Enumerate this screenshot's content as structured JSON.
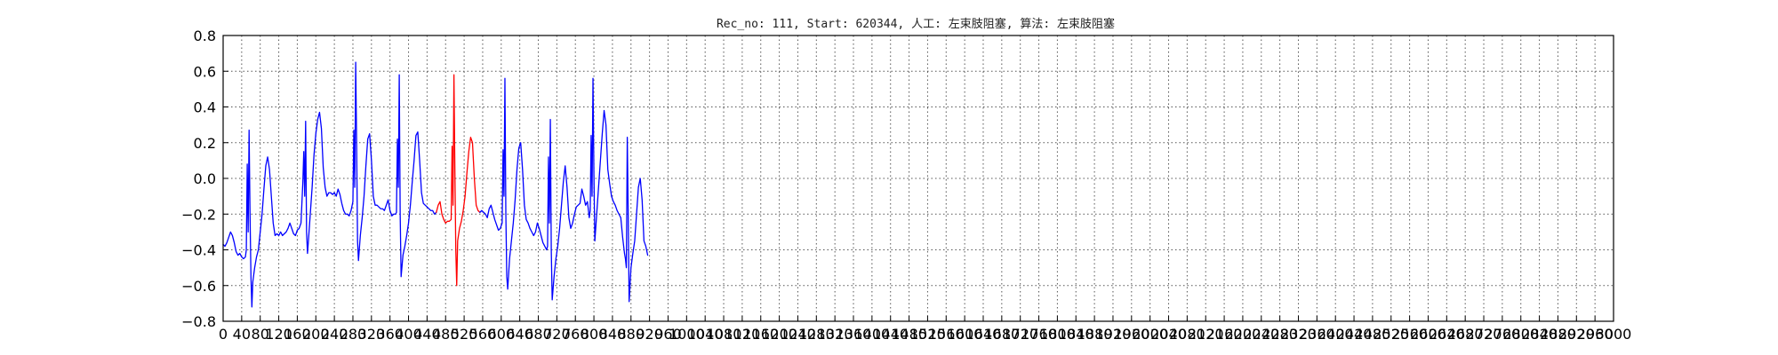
{
  "chart_data": {
    "type": "line",
    "title": "Rec_no: 111, Start: 620344, 人工: 左束肢阻塞, 算法: 左束肢阻塞",
    "xlabel": "",
    "ylabel": "",
    "xlim": [
      0,
      3000
    ],
    "ylim": [
      -0.8,
      0.8
    ],
    "grid": true,
    "y_ticks": [
      "0.8",
      "0.6",
      "0.4",
      "0.2",
      "0.0",
      "−0.2",
      "−0.4",
      "−0.6",
      "−0.8"
    ],
    "y_tick_values": [
      0.8,
      0.6,
      0.4,
      0.2,
      0.0,
      -0.2,
      -0.4,
      -0.6,
      -0.8
    ],
    "x_tick_values": [
      0,
      40,
      80,
      120,
      160,
      200,
      240,
      280,
      320,
      360,
      400,
      440,
      480,
      520,
      560,
      600,
      640,
      680,
      720,
      760,
      800,
      840,
      880,
      920,
      960,
      1000,
      1040,
      1080,
      1120,
      1160,
      1200,
      1240,
      1280,
      1320,
      1360,
      1400,
      1440,
      1480,
      1520,
      1560,
      1600,
      1640,
      1680,
      1720,
      1760,
      1800,
      1840,
      1880,
      1920,
      1960,
      2000,
      2040,
      2080,
      2120,
      2160,
      2200,
      2240,
      2280,
      2320,
      2360,
      2400,
      2440,
      2480,
      2520,
      2560,
      2600,
      2640,
      2680,
      2720,
      2760,
      2800,
      2840,
      2880,
      2920,
      2960,
      3000
    ],
    "x_tick_labels": [
      "0",
      "40",
      "80",
      "120",
      "160",
      "200",
      "240",
      "280",
      "320",
      "360",
      "400",
      "440",
      "480",
      "520",
      "560",
      "600",
      "640",
      "680",
      "720",
      "760",
      "800",
      "840",
      "880",
      "920",
      "960",
      "1000",
      "1040",
      "1080",
      "1120",
      "1160",
      "1200",
      "1240",
      "1280",
      "1320",
      "1360",
      "1400",
      "1440",
      "1480",
      "1520",
      "1560",
      "1600",
      "1640",
      "1680",
      "1720",
      "1760",
      "1800",
      "1840",
      "1880",
      "1920",
      "1960",
      "2000",
      "2040",
      "2080",
      "2120",
      "2160",
      "2200",
      "2240",
      "2280",
      "2320",
      "2360",
      "2400",
      "2440",
      "2480",
      "2520",
      "2560",
      "2600",
      "2640",
      "2680",
      "2720",
      "2760",
      "2800",
      "2840",
      "2880",
      "2920",
      "2960",
      "3000"
    ],
    "x_tick_font_size": 16,
    "colors": {
      "series": "#0000ff",
      "highlight": "#ff0000",
      "frame": "#000000",
      "grid": "#555555"
    },
    "series": [
      {
        "color": "#0000ff",
        "points": [
          [
            0,
            -0.37
          ],
          [
            4,
            -0.38
          ],
          [
            8,
            -0.36
          ],
          [
            12,
            -0.33
          ],
          [
            16,
            -0.3
          ],
          [
            20,
            -0.32
          ],
          [
            24,
            -0.36
          ],
          [
            28,
            -0.41
          ],
          [
            32,
            -0.43
          ],
          [
            36,
            -0.42
          ],
          [
            40,
            -0.44
          ],
          [
            44,
            -0.45
          ],
          [
            48,
            -0.44
          ],
          [
            50,
            -0.4
          ],
          [
            52,
            0.08
          ],
          [
            54,
            -0.3
          ],
          [
            56,
            0.27
          ],
          [
            58,
            -0.2
          ],
          [
            60,
            -0.55
          ],
          [
            62,
            -0.72
          ],
          [
            64,
            -0.58
          ],
          [
            68,
            -0.5
          ],
          [
            72,
            -0.44
          ],
          [
            76,
            -0.4
          ],
          [
            80,
            -0.3
          ],
          [
            84,
            -0.2
          ],
          [
            88,
            -0.06
          ],
          [
            92,
            0.07
          ],
          [
            96,
            0.12
          ],
          [
            100,
            0.05
          ],
          [
            104,
            -0.1
          ],
          [
            108,
            -0.25
          ],
          [
            112,
            -0.32
          ],
          [
            116,
            -0.31
          ],
          [
            120,
            -0.32
          ],
          [
            124,
            -0.3
          ],
          [
            128,
            -0.32
          ],
          [
            132,
            -0.31
          ],
          [
            136,
            -0.3
          ],
          [
            140,
            -0.28
          ],
          [
            144,
            -0.25
          ],
          [
            148,
            -0.28
          ],
          [
            152,
            -0.31
          ],
          [
            156,
            -0.32
          ],
          [
            160,
            -0.29
          ],
          [
            164,
            -0.28
          ],
          [
            168,
            -0.25
          ],
          [
            172,
            -0.02
          ],
          [
            174,
            0.15
          ],
          [
            176,
            -0.1
          ],
          [
            178,
            0.32
          ],
          [
            180,
            -0.3
          ],
          [
            182,
            -0.42
          ],
          [
            184,
            -0.35
          ],
          [
            188,
            -0.2
          ],
          [
            192,
            -0.05
          ],
          [
            196,
            0.13
          ],
          [
            200,
            0.25
          ],
          [
            204,
            0.33
          ],
          [
            208,
            0.37
          ],
          [
            212,
            0.28
          ],
          [
            216,
            0.06
          ],
          [
            220,
            -0.05
          ],
          [
            224,
            -0.1
          ],
          [
            228,
            -0.08
          ],
          [
            232,
            -0.08
          ],
          [
            236,
            -0.09
          ],
          [
            240,
            -0.08
          ],
          [
            244,
            -0.1
          ],
          [
            248,
            -0.06
          ],
          [
            252,
            -0.09
          ],
          [
            256,
            -0.14
          ],
          [
            260,
            -0.18
          ],
          [
            264,
            -0.2
          ],
          [
            268,
            -0.2
          ],
          [
            272,
            -0.21
          ],
          [
            276,
            -0.18
          ],
          [
            280,
            -0.13
          ],
          [
            282,
            0.27
          ],
          [
            284,
            -0.05
          ],
          [
            286,
            0.65
          ],
          [
            288,
            0.2
          ],
          [
            290,
            -0.35
          ],
          [
            292,
            -0.46
          ],
          [
            296,
            -0.32
          ],
          [
            300,
            -0.22
          ],
          [
            304,
            -0.1
          ],
          [
            308,
            0.07
          ],
          [
            312,
            0.22
          ],
          [
            316,
            0.25
          ],
          [
            320,
            0.1
          ],
          [
            324,
            -0.1
          ],
          [
            328,
            -0.15
          ],
          [
            332,
            -0.15
          ],
          [
            336,
            -0.16
          ],
          [
            340,
            -0.17
          ],
          [
            344,
            -0.17
          ],
          [
            348,
            -0.18
          ],
          [
            352,
            -0.15
          ],
          [
            356,
            -0.12
          ],
          [
            360,
            -0.18
          ],
          [
            364,
            -0.21
          ],
          [
            368,
            -0.2
          ],
          [
            372,
            -0.2
          ],
          [
            374,
            -0.19
          ],
          [
            376,
            0.22
          ],
          [
            378,
            -0.05
          ],
          [
            380,
            0.58
          ],
          [
            382,
            -0.2
          ],
          [
            384,
            -0.55
          ],
          [
            388,
            -0.43
          ],
          [
            392,
            -0.38
          ],
          [
            396,
            -0.32
          ],
          [
            400,
            -0.25
          ],
          [
            404,
            -0.15
          ],
          [
            408,
            -0.02
          ],
          [
            412,
            0.1
          ],
          [
            416,
            0.24
          ],
          [
            420,
            0.26
          ],
          [
            424,
            0.1
          ],
          [
            428,
            -0.08
          ],
          [
            432,
            -0.14
          ],
          [
            436,
            -0.15
          ],
          [
            440,
            -0.16
          ],
          [
            444,
            -0.17
          ],
          [
            448,
            -0.18
          ],
          [
            452,
            -0.18
          ],
          [
            456,
            -0.2
          ],
          [
            460,
            -0.19
          ]
        ]
      },
      {
        "color": "#ff0000",
        "points": [
          [
            460,
            -0.19
          ],
          [
            464,
            -0.15
          ],
          [
            468,
            -0.13
          ],
          [
            472,
            -0.2
          ],
          [
            476,
            -0.23
          ],
          [
            480,
            -0.25
          ],
          [
            484,
            -0.24
          ],
          [
            488,
            -0.24
          ],
          [
            492,
            -0.23
          ],
          [
            494,
            0.18
          ],
          [
            496,
            -0.15
          ],
          [
            498,
            0.58
          ],
          [
            500,
            0.05
          ],
          [
            502,
            -0.4
          ],
          [
            504,
            -0.6
          ],
          [
            506,
            -0.35
          ],
          [
            510,
            -0.28
          ],
          [
            514,
            -0.24
          ],
          [
            518,
            -0.18
          ],
          [
            522,
            -0.1
          ],
          [
            526,
            0.03
          ],
          [
            530,
            0.15
          ],
          [
            534,
            0.23
          ],
          [
            538,
            0.2
          ],
          [
            542,
            0.0
          ],
          [
            546,
            -0.15
          ],
          [
            550,
            -0.18
          ],
          [
            554,
            -0.19
          ]
        ]
      },
      {
        "color": "#0000ff",
        "points": [
          [
            554,
            -0.19
          ],
          [
            558,
            -0.18
          ],
          [
            562,
            -0.19
          ],
          [
            566,
            -0.2
          ],
          [
            570,
            -0.22
          ],
          [
            574,
            -0.17
          ],
          [
            578,
            -0.15
          ],
          [
            582,
            -0.19
          ],
          [
            586,
            -0.23
          ],
          [
            590,
            -0.26
          ],
          [
            594,
            -0.29
          ],
          [
            598,
            -0.28
          ],
          [
            602,
            -0.25
          ],
          [
            604,
            0.16
          ],
          [
            606,
            -0.1
          ],
          [
            608,
            0.56
          ],
          [
            610,
            -0.2
          ],
          [
            612,
            -0.55
          ],
          [
            614,
            -0.62
          ],
          [
            618,
            -0.45
          ],
          [
            622,
            -0.35
          ],
          [
            626,
            -0.25
          ],
          [
            630,
            -0.12
          ],
          [
            634,
            0.05
          ],
          [
            638,
            0.17
          ],
          [
            642,
            0.2
          ],
          [
            646,
            0.05
          ],
          [
            650,
            -0.15
          ],
          [
            654,
            -0.23
          ],
          [
            658,
            -0.25
          ],
          [
            662,
            -0.28
          ],
          [
            666,
            -0.3
          ],
          [
            670,
            -0.32
          ],
          [
            674,
            -0.3
          ],
          [
            678,
            -0.25
          ],
          [
            682,
            -0.28
          ],
          [
            686,
            -0.32
          ],
          [
            690,
            -0.36
          ],
          [
            694,
            -0.38
          ],
          [
            698,
            -0.4
          ],
          [
            700,
            -0.38
          ],
          [
            702,
            0.12
          ],
          [
            704,
            -0.25
          ],
          [
            706,
            0.33
          ],
          [
            708,
            -0.4
          ],
          [
            710,
            -0.68
          ],
          [
            714,
            -0.55
          ],
          [
            718,
            -0.45
          ],
          [
            722,
            -0.38
          ],
          [
            726,
            -0.28
          ],
          [
            730,
            -0.15
          ],
          [
            734,
            -0.02
          ],
          [
            738,
            0.07
          ],
          [
            742,
            -0.05
          ],
          [
            746,
            -0.22
          ],
          [
            750,
            -0.28
          ],
          [
            754,
            -0.25
          ],
          [
            758,
            -0.2
          ],
          [
            762,
            -0.16
          ],
          [
            766,
            -0.15
          ],
          [
            770,
            -0.14
          ],
          [
            774,
            -0.06
          ],
          [
            778,
            -0.1
          ],
          [
            782,
            -0.15
          ],
          [
            786,
            -0.13
          ],
          [
            790,
            -0.22
          ],
          [
            792,
            -0.18
          ],
          [
            794,
            0.24
          ],
          [
            796,
            -0.1
          ],
          [
            798,
            0.56
          ],
          [
            800,
            0.02
          ],
          [
            802,
            -0.35
          ],
          [
            806,
            -0.2
          ],
          [
            810,
            -0.05
          ],
          [
            814,
            0.1
          ],
          [
            818,
            0.25
          ],
          [
            822,
            0.38
          ],
          [
            826,
            0.3
          ],
          [
            830,
            0.05
          ],
          [
            834,
            -0.03
          ],
          [
            838,
            -0.1
          ],
          [
            842,
            -0.13
          ],
          [
            846,
            -0.15
          ],
          [
            850,
            -0.18
          ],
          [
            854,
            -0.2
          ],
          [
            858,
            -0.22
          ],
          [
            862,
            -0.33
          ],
          [
            866,
            -0.42
          ],
          [
            868,
            -0.45
          ],
          [
            870,
            -0.5
          ],
          [
            872,
            0.23
          ],
          [
            874,
            -0.2
          ],
          [
            876,
            -0.69
          ],
          [
            880,
            -0.5
          ],
          [
            884,
            -0.42
          ],
          [
            888,
            -0.35
          ],
          [
            892,
            -0.2
          ],
          [
            896,
            -0.05
          ],
          [
            900,
            0.0
          ],
          [
            904,
            -0.12
          ],
          [
            908,
            -0.35
          ],
          [
            912,
            -0.38
          ],
          [
            916,
            -0.43
          ]
        ]
      }
    ]
  }
}
